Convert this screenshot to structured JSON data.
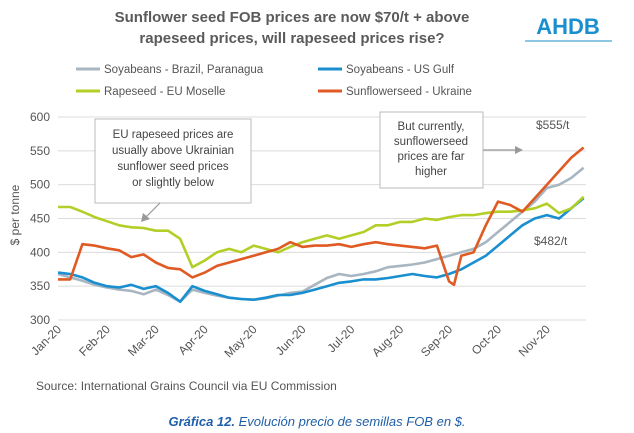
{
  "title_line1": "Sunflower seed FOB prices are now $70/t + above",
  "title_line2": "rapeseed prices, will rapeseed prices rise?",
  "logo": "AHDB",
  "source": "Source: International Grains Council via EU Commission",
  "caption_bold": "Gráfica 12.",
  "caption_rest": " Evolución precio de semillas FOB en $.",
  "colors": {
    "soy_brazil": "#a7b6c1",
    "soy_us": "#1a8fd0",
    "rapeseed": "#b3cf27",
    "sunflower": "#e05a23"
  },
  "annotations": {
    "left": [
      "EU rapeseed prices are",
      "usually above Ukrainian",
      "sunflower seed prices",
      "or slightly below"
    ],
    "right": [
      "But currently,",
      "sunflowerseed",
      "prices are far",
      "higher"
    ],
    "label_555": "$555/t",
    "label_482": "$482/t"
  },
  "chart_data": {
    "type": "line",
    "ylabel": "$ per tonne",
    "ylim": [
      300,
      600
    ],
    "yticks": [
      300,
      350,
      400,
      450,
      500,
      550,
      600
    ],
    "x_range": [
      0,
      10.8
    ],
    "xtick_positions": [
      0,
      1,
      2,
      3,
      4,
      5,
      6,
      7,
      8,
      9,
      10
    ],
    "xtick_labels": [
      "Jan-20",
      "Feb-20",
      "Mar-20",
      "Apr-20",
      "May-20",
      "Jun-20",
      "Jul-20",
      "Aug-20",
      "Sep-20",
      "Oct-20",
      "Nov-20"
    ],
    "legend": [
      "Soyabeans - Brazil, Paranagua",
      "Soyabeans - US Gulf",
      "Rapeseed - EU Moselle",
      "Sunflowerseed - Ukraine"
    ],
    "series": [
      {
        "name": "Soyabeans - Brazil, Paranagua",
        "color_key": "soy_brazil",
        "x": [
          0,
          0.25,
          0.5,
          0.75,
          1,
          1.25,
          1.5,
          1.75,
          2,
          2.25,
          2.5,
          2.75,
          3,
          3.25,
          3.5,
          3.75,
          4,
          4.25,
          4.5,
          4.75,
          5,
          5.25,
          5.5,
          5.75,
          6,
          6.25,
          6.5,
          6.75,
          7,
          7.25,
          7.5,
          7.75,
          8,
          8.25,
          8.5,
          8.75,
          9,
          9.25,
          9.5,
          9.75,
          10,
          10.25,
          10.5,
          10.75
        ],
        "y": [
          368,
          363,
          358,
          352,
          348,
          345,
          343,
          338,
          345,
          337,
          327,
          345,
          340,
          336,
          333,
          331,
          330,
          332,
          336,
          340,
          342,
          352,
          362,
          368,
          365,
          368,
          372,
          378,
          380,
          382,
          385,
          390,
          395,
          400,
          405,
          415,
          430,
          445,
          460,
          475,
          495,
          500,
          510,
          525
        ]
      },
      {
        "name": "Soyabeans - US Gulf",
        "color_key": "soy_us",
        "x": [
          0,
          0.25,
          0.5,
          0.75,
          1,
          1.25,
          1.5,
          1.75,
          2,
          2.25,
          2.5,
          2.75,
          3,
          3.25,
          3.5,
          3.75,
          4,
          4.25,
          4.5,
          4.75,
          5,
          5.25,
          5.5,
          5.75,
          6,
          6.25,
          6.5,
          6.75,
          7,
          7.25,
          7.5,
          7.75,
          8,
          8.25,
          8.5,
          8.75,
          9,
          9.25,
          9.5,
          9.75,
          10,
          10.25,
          10.5,
          10.75
        ],
        "y": [
          370,
          368,
          363,
          355,
          350,
          348,
          352,
          346,
          350,
          340,
          327,
          350,
          343,
          338,
          333,
          331,
          330,
          333,
          337,
          337,
          340,
          345,
          350,
          355,
          357,
          360,
          360,
          362,
          365,
          368,
          365,
          363,
          368,
          375,
          385,
          395,
          410,
          425,
          440,
          450,
          455,
          450,
          465,
          480
        ]
      },
      {
        "name": "Rapeseed - EU Moselle",
        "color_key": "rapeseed",
        "x": [
          0,
          0.25,
          0.5,
          0.75,
          1,
          1.25,
          1.5,
          1.75,
          2,
          2.25,
          2.5,
          2.75,
          3,
          3.25,
          3.5,
          3.75,
          4,
          4.25,
          4.5,
          4.75,
          5,
          5.25,
          5.5,
          5.75,
          6,
          6.25,
          6.5,
          6.75,
          7,
          7.25,
          7.5,
          7.75,
          8,
          8.25,
          8.5,
          8.75,
          9,
          9.25,
          9.5,
          9.75,
          10,
          10.25,
          10.5,
          10.75
        ],
        "y": [
          467,
          467,
          460,
          452,
          446,
          440,
          437,
          436,
          432,
          432,
          420,
          378,
          388,
          400,
          405,
          400,
          410,
          405,
          400,
          408,
          415,
          420,
          425,
          420,
          425,
          430,
          440,
          440,
          445,
          445,
          450,
          448,
          452,
          455,
          455,
          458,
          460,
          460,
          462,
          465,
          472,
          458,
          465,
          482
        ]
      },
      {
        "name": "Sunflowerseed - Ukraine",
        "color_key": "sunflower",
        "x": [
          0,
          0.25,
          0.5,
          0.75,
          1,
          1.25,
          1.5,
          1.75,
          2,
          2.25,
          2.5,
          2.75,
          3,
          3.25,
          3.5,
          3.75,
          4,
          4.25,
          4.5,
          4.75,
          5,
          5.25,
          5.5,
          5.75,
          6,
          6.25,
          6.5,
          6.75,
          7,
          7.25,
          7.5,
          7.75,
          8,
          8.1,
          8.25,
          8.5,
          8.75,
          9,
          9.25,
          9.5,
          9.75,
          10,
          10.25,
          10.5,
          10.75
        ],
        "y": [
          360,
          360,
          412,
          410,
          406,
          403,
          393,
          397,
          385,
          377,
          375,
          363,
          370,
          380,
          385,
          390,
          395,
          400,
          405,
          415,
          408,
          410,
          410,
          412,
          408,
          412,
          415,
          412,
          410,
          408,
          406,
          410,
          357,
          352,
          395,
          400,
          440,
          475,
          470,
          460,
          480,
          500,
          520,
          540,
          555
        ]
      }
    ]
  }
}
